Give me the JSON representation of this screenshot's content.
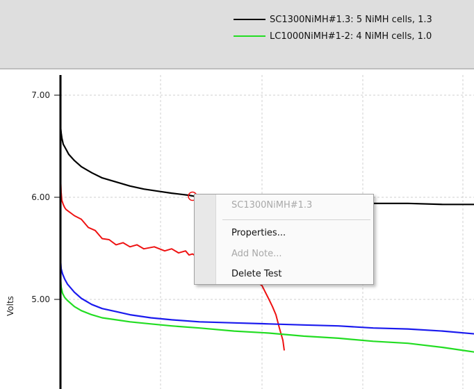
{
  "legend": {
    "items": [
      {
        "label": "SC1300NiMH#1.3: 5 NiMH cells, 1.3",
        "color": "#000000"
      },
      {
        "label": "LC1000NiMH#1-2: 4 NiMH cells, 1.0",
        "color": "#22dd22"
      }
    ]
  },
  "chart_data": {
    "type": "line",
    "ylabel": "Volts",
    "ylim": [
      4.15,
      7.3
    ],
    "grid": true,
    "yticks": [
      {
        "value": 7.0,
        "label": "7.00"
      },
      {
        "value": 6.0,
        "label": "6.00"
      },
      {
        "value": 5.0,
        "label": "5.00"
      }
    ],
    "series": [
      {
        "name": "SC1300NiMH#1.3",
        "color": "#000000",
        "x": [
          0,
          1,
          2,
          4,
          8,
          12,
          20,
          30,
          45,
          60,
          80,
          100,
          120,
          140,
          160,
          185,
          200,
          220,
          250,
          300,
          400,
          500,
          550,
          600
        ],
        "y": [
          6.7,
          6.63,
          6.58,
          6.52,
          6.47,
          6.42,
          6.36,
          6.3,
          6.24,
          6.19,
          6.15,
          6.11,
          6.08,
          6.06,
          6.04,
          6.02,
          6.0,
          5.98,
          5.96,
          5.95,
          5.94,
          5.94,
          5.93,
          5.93
        ]
      },
      {
        "name": "",
        "color": "#ee1111",
        "x": [
          0,
          1,
          2,
          4,
          6,
          8,
          12,
          16,
          20,
          30,
          40,
          50,
          60,
          70,
          80,
          90,
          100,
          110,
          120,
          135,
          150,
          160,
          170,
          180,
          185,
          190,
          200,
          210,
          220,
          230,
          240,
          250,
          260,
          270,
          280,
          290,
          300,
          305,
          310,
          315,
          320,
          322
        ],
        "y": [
          6.22,
          6.05,
          5.97,
          5.93,
          5.9,
          5.88,
          5.86,
          5.84,
          5.82,
          5.77,
          5.72,
          5.66,
          5.61,
          5.57,
          5.55,
          5.54,
          5.53,
          5.52,
          5.51,
          5.5,
          5.49,
          5.48,
          5.47,
          5.46,
          5.45,
          5.43,
          5.42,
          5.4,
          5.38,
          5.37,
          5.35,
          5.32,
          5.3,
          5.25,
          5.2,
          5.12,
          5.0,
          4.93,
          4.85,
          4.72,
          4.6,
          4.5
        ]
      },
      {
        "name": "",
        "color": "#1a1aee",
        "x": [
          0,
          1,
          3,
          6,
          10,
          20,
          30,
          45,
          60,
          80,
          100,
          130,
          160,
          200,
          250,
          300,
          350,
          400,
          450,
          500,
          550,
          600
        ],
        "y": [
          5.4,
          5.3,
          5.25,
          5.2,
          5.15,
          5.07,
          5.01,
          4.95,
          4.91,
          4.88,
          4.85,
          4.82,
          4.8,
          4.78,
          4.77,
          4.76,
          4.75,
          4.74,
          4.72,
          4.71,
          4.69,
          4.66
        ]
      },
      {
        "name": "LC1000NiMH#1-2",
        "color": "#22dd22",
        "x": [
          0,
          1,
          3,
          6,
          10,
          20,
          30,
          45,
          60,
          80,
          100,
          130,
          160,
          200,
          250,
          300,
          350,
          400,
          450,
          500,
          550,
          580,
          600
        ],
        "y": [
          5.22,
          5.12,
          5.06,
          5.02,
          4.99,
          4.93,
          4.89,
          4.85,
          4.82,
          4.8,
          4.78,
          4.76,
          4.74,
          4.72,
          4.69,
          4.67,
          4.64,
          4.62,
          4.59,
          4.57,
          4.53,
          4.5,
          4.48
        ]
      }
    ],
    "marker": {
      "series": "SC1300NiMH#1.3",
      "x": 190,
      "y": 6.01
    }
  },
  "context_menu": {
    "header": "SC1300NiMH#1.3",
    "items": [
      {
        "label": "Properties...",
        "enabled": true
      },
      {
        "label": "Add Note...",
        "enabled": false
      },
      {
        "label": "Delete Test",
        "enabled": true
      }
    ]
  }
}
